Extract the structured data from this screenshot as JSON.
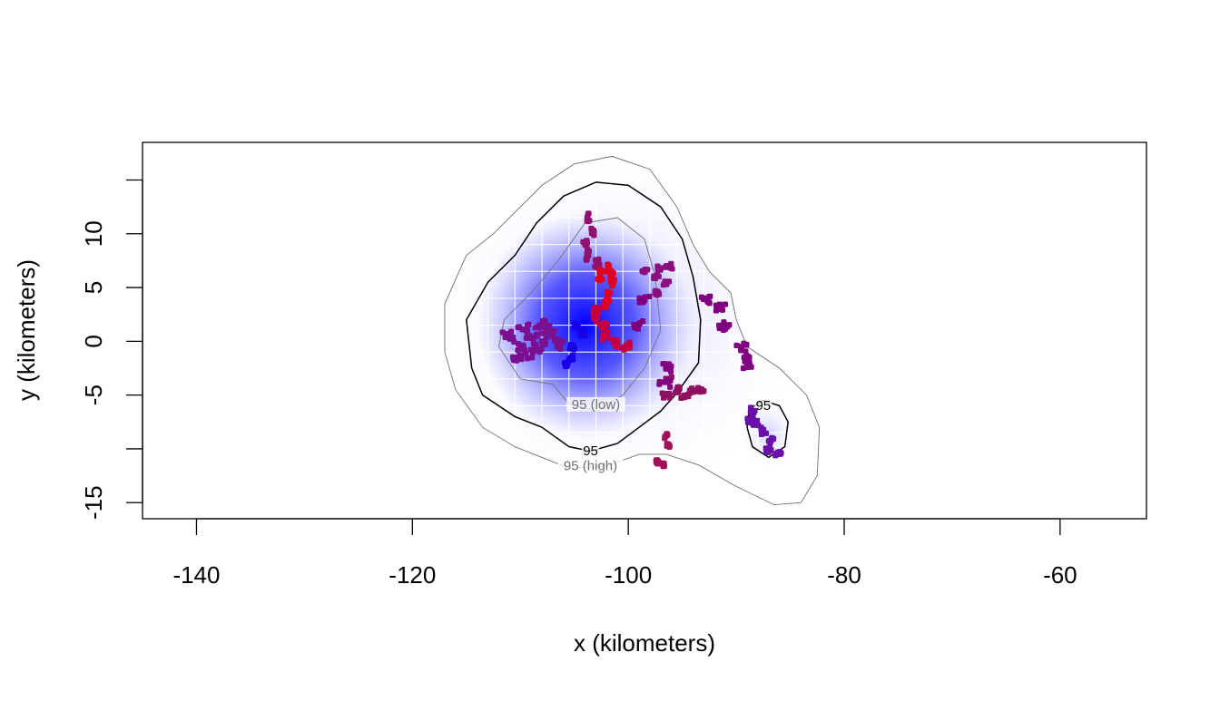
{
  "chart_data": {
    "type": "scatter",
    "title": "",
    "xlabel": "x (kilometers)",
    "ylabel": "y (kilometers)",
    "xlim": [
      -145,
      -52
    ],
    "ylim": [
      -16.5,
      18.5
    ],
    "x_ticks": [
      -140,
      -120,
      -100,
      -80,
      -60
    ],
    "x_tick_labels": [
      "-140",
      "-120",
      "-100",
      "-80",
      "-60"
    ],
    "y_ticks": [
      -15,
      -10,
      -5,
      0,
      5,
      10,
      15
    ],
    "y_tick_labels": [
      "-15",
      "",
      "-5",
      "0",
      "5",
      "10",
      ""
    ],
    "grid": false,
    "density_colormap": {
      "low": "#ffffff",
      "high": "#0000ff"
    },
    "point_color_gradient": {
      "start": "#5a00b4",
      "end": "#ff0000"
    },
    "contours": [
      {
        "label": "95 (low)",
        "color": "#707070",
        "label_at": [
          -103,
          -6.2
        ],
        "path": [
          [
            -107,
            -4
          ],
          [
            -105.5,
            -5.8
          ],
          [
            -103,
            -6.5
          ],
          [
            -100.5,
            -5
          ],
          [
            -98.5,
            -2.5
          ],
          [
            -97,
            1
          ],
          [
            -97.5,
            6
          ],
          [
            -98.5,
            9.5
          ],
          [
            -101,
            11.5
          ],
          [
            -104,
            11
          ],
          [
            -106.5,
            7.5
          ],
          [
            -109,
            4.5
          ],
          [
            -111.5,
            2
          ],
          [
            -112,
            -0.5
          ],
          [
            -110,
            -3.5
          ]
        ]
      },
      {
        "label": "95",
        "color": "#000000",
        "label_at": [
          -103.5,
          -10.5
        ],
        "path": [
          [
            -108,
            -8
          ],
          [
            -105.5,
            -9.8
          ],
          [
            -103.5,
            -10.2
          ],
          [
            -101,
            -9.5
          ],
          [
            -99,
            -8
          ],
          [
            -97,
            -6.5
          ],
          [
            -95.5,
            -4.8
          ],
          [
            -93.5,
            -2
          ],
          [
            -93.3,
            2
          ],
          [
            -94,
            6
          ],
          [
            -95,
            9.5
          ],
          [
            -97,
            12.5
          ],
          [
            -100,
            14.5
          ],
          [
            -103,
            14.8
          ],
          [
            -106,
            13.5
          ],
          [
            -108.5,
            11
          ],
          [
            -110.5,
            8
          ],
          [
            -113,
            5.5
          ],
          [
            -115,
            2
          ],
          [
            -114.5,
            -2.5
          ],
          [
            -113.5,
            -5
          ],
          [
            -110.5,
            -7
          ]
        ]
      },
      {
        "label": "95",
        "color": "#000000",
        "label_at": [
          -87.5,
          -6.3
        ],
        "path": [
          [
            -89,
            -8
          ],
          [
            -88.5,
            -9.8
          ],
          [
            -87,
            -10.8
          ],
          [
            -85.5,
            -9.8
          ],
          [
            -85.2,
            -7.5
          ],
          [
            -86,
            -6
          ],
          [
            -87.5,
            -5.5
          ],
          [
            -88.8,
            -6.3
          ]
        ]
      },
      {
        "label": "95 (high)",
        "color": "#707070",
        "label_at": [
          -103.5,
          -11.9
        ],
        "path": [
          [
            -108,
            -10.8
          ],
          [
            -105.5,
            -11.8
          ],
          [
            -102,
            -11.6
          ],
          [
            -99,
            -10.5
          ],
          [
            -96.5,
            -10.5
          ],
          [
            -93.5,
            -11.5
          ],
          [
            -90,
            -13.5
          ],
          [
            -86.5,
            -15.2
          ],
          [
            -84,
            -15
          ],
          [
            -82.5,
            -12.5
          ],
          [
            -82.3,
            -8
          ],
          [
            -83.5,
            -5
          ],
          [
            -86,
            -2.5
          ],
          [
            -89,
            -0.5
          ],
          [
            -90,
            2
          ],
          [
            -90.5,
            4.5
          ],
          [
            -92.5,
            6.5
          ],
          [
            -94,
            9
          ],
          [
            -95.5,
            12.5
          ],
          [
            -98,
            16
          ],
          [
            -101.5,
            17.2
          ],
          [
            -105,
            16.5
          ],
          [
            -108,
            14.5
          ],
          [
            -110.5,
            12
          ],
          [
            -112.5,
            10
          ],
          [
            -115,
            8
          ],
          [
            -117,
            3.5
          ],
          [
            -117,
            -1
          ],
          [
            -116,
            -4.5
          ],
          [
            -113.5,
            -8
          ],
          [
            -110.5,
            -9.8
          ]
        ]
      }
    ],
    "clusters": [
      {
        "name": "",
        "color": "#7a1090",
        "spread": [
          1.3,
          1.2
        ],
        "points": [
          [
            -110,
            -0.5
          ],
          [
            -109,
            0.3
          ],
          [
            -108.2,
            1.5
          ],
          [
            -107.5,
            1
          ],
          [
            -110.5,
            -1.5
          ],
          [
            -111.2,
            0.5
          ],
          [
            -109.5,
            -1.2
          ],
          [
            -108,
            0
          ],
          [
            -107,
            0.5
          ],
          [
            -106.3,
            -0.2
          ],
          [
            -109.8,
            1.1
          ],
          [
            -108.5,
            -0.8
          ]
        ]
      },
      {
        "name": "",
        "color": "#901070",
        "spread": [
          0.5,
          1.0
        ],
        "points": [
          [
            -103.8,
            11.5
          ],
          [
            -103.3,
            10.3
          ],
          [
            -104,
            9
          ],
          [
            -103.7,
            8
          ],
          [
            -102.9,
            7.2
          ]
        ]
      },
      {
        "name": "",
        "color": "#e00022",
        "spread": [
          0.5,
          1.2
        ],
        "points": [
          [
            -101.8,
            7
          ],
          [
            -101.6,
            6
          ],
          [
            -101.5,
            5.2
          ],
          [
            -101.9,
            4.2
          ],
          [
            -102.2,
            3.5
          ],
          [
            -102.6,
            6.2
          ]
        ]
      },
      {
        "name": "",
        "color": "#c40040",
        "spread": [
          0.8,
          0.9
        ],
        "points": [
          [
            -103,
            3
          ],
          [
            -102.3,
            1.5
          ],
          [
            -103.2,
            2.2
          ],
          [
            -101.3,
            -0.2
          ],
          [
            -100.2,
            -0.4
          ],
          [
            -102.1,
            0.5
          ]
        ]
      },
      {
        "name": "",
        "color": "#1a00e6",
        "spread": [
          0.5,
          0.6
        ],
        "points": [
          [
            -104.8,
            1.5
          ],
          [
            -104.2,
            0.8
          ],
          [
            -105.2,
            -0.5
          ],
          [
            -105.8,
            -2.2
          ],
          [
            -105.3,
            -1.5
          ]
        ]
      },
      {
        "name": "",
        "color": "#8a1080",
        "spread": [
          0.8,
          0.6
        ],
        "points": [
          [
            -98.5,
            6.5
          ],
          [
            -97.5,
            6
          ],
          [
            -96.5,
            5.5
          ],
          [
            -97,
            6.8
          ],
          [
            -97.5,
            4.5
          ],
          [
            -96.3,
            7
          ]
        ]
      },
      {
        "name": "",
        "color": "#901060",
        "spread": [
          0.8,
          0.6
        ],
        "points": [
          [
            -95.5,
            -4.5
          ],
          [
            -94.3,
            -4.6
          ],
          [
            -96.2,
            -3.5
          ],
          [
            -94.8,
            -5.2
          ],
          [
            -93.2,
            -4.5
          ],
          [
            -96.5,
            -5
          ]
        ]
      },
      {
        "name": "",
        "color": "#800080",
        "spread": [
          1.2,
          1.0
        ],
        "points": [
          [
            -92.8,
            4
          ],
          [
            -91.5,
            3
          ],
          [
            -91.2,
            1.5
          ],
          [
            -89.5,
            -0.5
          ],
          [
            -88.8,
            -1.5
          ],
          [
            -89,
            -2.3
          ],
          [
            -96.5,
            -2.5
          ],
          [
            -96.6,
            -3.8
          ],
          [
            -98.5,
            3.8
          ],
          [
            -99,
            1.6
          ]
        ]
      },
      {
        "name": "",
        "color": "#6a10a8",
        "spread": [
          0.6,
          0.8
        ],
        "points": [
          [
            -88.5,
            -6.5
          ],
          [
            -88.2,
            -7.5
          ],
          [
            -87.5,
            -8.3
          ],
          [
            -86.8,
            -9.2
          ],
          [
            -86.1,
            -10.5
          ],
          [
            -88.7,
            -7.2
          ],
          [
            -87,
            -10
          ]
        ]
      },
      {
        "name": "",
        "color": "#a0105a",
        "spread": [
          0.3,
          0.5
        ],
        "points": [
          [
            -96.5,
            -8.8
          ],
          [
            -96.3,
            -9.6
          ],
          [
            -97.3,
            -11.2
          ],
          [
            -96.8,
            -11.4
          ]
        ]
      }
    ]
  }
}
